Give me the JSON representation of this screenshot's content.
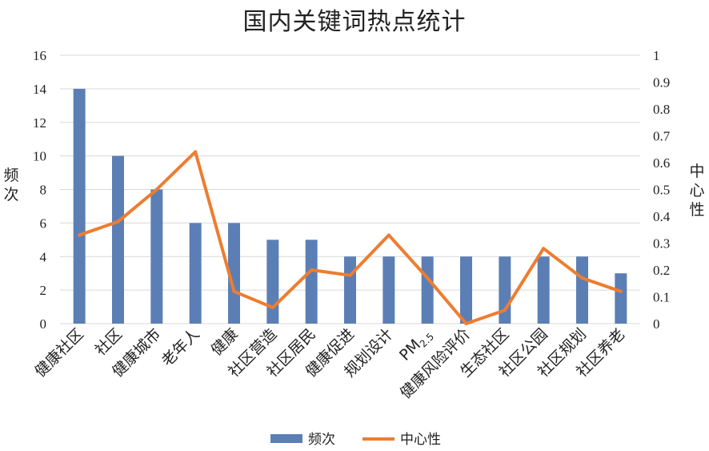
{
  "chart_data": {
    "type": "bar",
    "title": "国内关键词热点统计",
    "categories": [
      "健康社区",
      "社区",
      "健康城市",
      "老年人",
      "健康",
      "社区营造",
      "社区居民",
      "健康促进",
      "规划设计",
      "PM2.5",
      "健康风险评价",
      "生态社区",
      "社区公园",
      "社区规划",
      "社区养老"
    ],
    "series": [
      {
        "name": "频次",
        "type": "bar",
        "axis": "left",
        "color": "#5B7FB5",
        "values": [
          14,
          10,
          8,
          6,
          6,
          5,
          5,
          4,
          4,
          4,
          4,
          4,
          4,
          4,
          3
        ]
      },
      {
        "name": "中心性",
        "type": "line",
        "axis": "right",
        "color": "#ED7D31",
        "values": [
          0.33,
          0.38,
          0.5,
          0.64,
          0.12,
          0.06,
          0.2,
          0.18,
          0.33,
          0.17,
          0.0,
          0.05,
          0.28,
          0.17,
          0.12
        ]
      }
    ],
    "ylabel": "频次",
    "y2label": "中心性",
    "ylim": [
      0,
      16
    ],
    "yticks": [
      "0",
      "2",
      "4",
      "6",
      "8",
      "10",
      "12",
      "14",
      "16"
    ],
    "y2lim": [
      0,
      1
    ],
    "y2ticks": [
      "0",
      "0.1",
      "0.2",
      "0.3",
      "0.4",
      "0.5",
      "0.6",
      "0.7",
      "0.8",
      "0.9",
      "1"
    ],
    "grid": true,
    "legend": "bottom"
  }
}
